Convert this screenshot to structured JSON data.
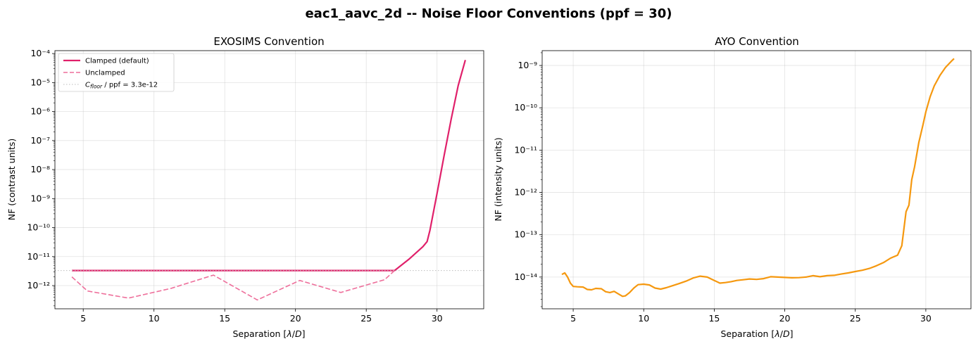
{
  "figure": {
    "title": "eac1_aavc_2d -- Noise Floor Conventions (ppf = 30)"
  },
  "chart_data": [
    {
      "type": "line",
      "title": "EXOSIMS Convention",
      "xlabel": "Separation [λ/D]",
      "ylabel": "NF (contrast units)",
      "yscale": "log",
      "xlim": [
        3.0,
        33.3
      ],
      "ylim_exp": [
        -12.8,
        -3.9
      ],
      "xticks": [
        5,
        10,
        15,
        20,
        25,
        30
      ],
      "xtick_labels": [
        "5",
        "10",
        "15",
        "20",
        "25",
        "30"
      ],
      "yticks_exp": [
        -12,
        -11,
        -10,
        -9,
        -8,
        -7,
        -6,
        -5,
        -4
      ],
      "grid": true,
      "legend": {
        "placement": "upper-left",
        "entries": [
          {
            "label": "Clamped (default)",
            "style": "solid",
            "color": "#e0206a"
          },
          {
            "label": "Unclamped",
            "style": "dashed",
            "color": "#ee6f9b"
          },
          {
            "label_base": "C",
            "label_sub": "floor",
            "label_rest": " / ppf = 3.3e-12",
            "style": "dotted",
            "color": "#bdbdbd"
          }
        ]
      },
      "series": [
        {
          "name": "Clamped (default)",
          "color": "#e0206a",
          "style": "solid",
          "x": [
            4.2,
            10,
            15,
            20,
            25,
            27.0,
            28.0,
            29.0,
            29.3,
            29.5,
            30.0,
            30.5,
            31.0,
            31.5,
            32.0
          ],
          "y": [
            3.3e-12,
            3.3e-12,
            3.3e-12,
            3.3e-12,
            3.3e-12,
            3.3e-12,
            8e-12,
            2.2e-11,
            3.3e-11,
            8e-11,
            1.5e-09,
            3e-08,
            5.5e-07,
            8e-06,
            6e-05
          ]
        },
        {
          "name": "Unclamped",
          "color": "#ee6f9b",
          "style": "dashed",
          "x": [
            4.2,
            5.3,
            8.2,
            11.2,
            14.2,
            17.3,
            20.3,
            23.2,
            26.3,
            27.0
          ],
          "y": [
            2e-12,
            6.5e-13,
            3.7e-13,
            8e-13,
            2.3e-12,
            3.2e-13,
            1.5e-12,
            5.8e-13,
            1.6e-12,
            3.3e-12
          ]
        },
        {
          "name": "C_floor / ppf = 3.3e-12",
          "color": "#bdbdbd",
          "style": "dotted",
          "hline": 3.3e-12
        }
      ]
    },
    {
      "type": "line",
      "title": "AYO Convention",
      "xlabel": "Separation [λ/D]",
      "ylabel": "NF (intensity units)",
      "yscale": "log",
      "xlim": [
        2.8,
        33.2
      ],
      "ylim_exp": [
        -14.75,
        -8.65
      ],
      "xticks": [
        5,
        10,
        15,
        20,
        25,
        30
      ],
      "xtick_labels": [
        "5",
        "10",
        "15",
        "20",
        "25",
        "30"
      ],
      "yticks_exp": [
        -14,
        -13,
        -12,
        -11,
        -10,
        -9
      ],
      "grid": true,
      "series": [
        {
          "name": "",
          "color": "#f5980f",
          "style": "solid",
          "x": [
            4.2,
            4.4,
            4.6,
            4.8,
            5.0,
            5.3,
            5.7,
            6.0,
            6.3,
            6.6,
            7.0,
            7.3,
            7.6,
            7.9,
            8.2,
            8.5,
            8.7,
            9.0,
            9.3,
            9.6,
            10.0,
            10.4,
            10.8,
            11.2,
            11.6,
            12.0,
            12.5,
            13.0,
            13.5,
            14.0,
            14.5,
            15.0,
            15.4,
            15.8,
            16.2,
            16.6,
            17.0,
            17.5,
            18.0,
            18.5,
            19.0,
            19.5,
            20.0,
            20.5,
            21.0,
            21.5,
            22.0,
            22.5,
            23.0,
            23.5,
            24.0,
            24.5,
            25.0,
            25.5,
            26.0,
            26.5,
            27.0,
            27.5,
            28.0,
            28.3,
            28.6,
            28.8,
            29.0,
            29.2,
            29.5,
            29.8,
            30.0,
            30.3,
            30.6,
            31.0,
            31.4,
            31.8,
            32.0
          ],
          "y": [
            1.15e-14,
            1.25e-14,
            1e-14,
            7.2e-15,
            6e-15,
            5.9e-15,
            5.8e-15,
            5.1e-15,
            5e-15,
            5.4e-15,
            5.3e-15,
            4.5e-15,
            4.3e-15,
            4.6e-15,
            4e-15,
            3.5e-15,
            3.6e-15,
            4.3e-15,
            5.5e-15,
            6.6e-15,
            6.8e-15,
            6.5e-15,
            5.5e-15,
            5.2e-15,
            5.6e-15,
            6.2e-15,
            7e-15,
            8e-15,
            9.5e-15,
            1.05e-14,
            1e-14,
            8.3e-15,
            7.2e-15,
            7.4e-15,
            7.8e-15,
            8.3e-15,
            8.6e-15,
            9e-15,
            8.8e-15,
            9.2e-15,
            1.02e-14,
            1e-14,
            9.8e-15,
            9.6e-15,
            9.7e-15,
            1e-14,
            1.08e-14,
            1.02e-14,
            1.08e-14,
            1.1e-14,
            1.18e-14,
            1.25e-14,
            1.35e-14,
            1.45e-14,
            1.6e-14,
            1.85e-14,
            2.2e-14,
            2.8e-14,
            3.3e-14,
            5.5e-14,
            3.5e-13,
            5e-13,
            2e-12,
            4e-12,
            1.5e-11,
            4e-11,
            8e-11,
            1.8e-10,
            3.3e-10,
            5.8e-10,
            9e-10,
            1.25e-09,
            1.45e-09
          ]
        }
      ]
    }
  ]
}
